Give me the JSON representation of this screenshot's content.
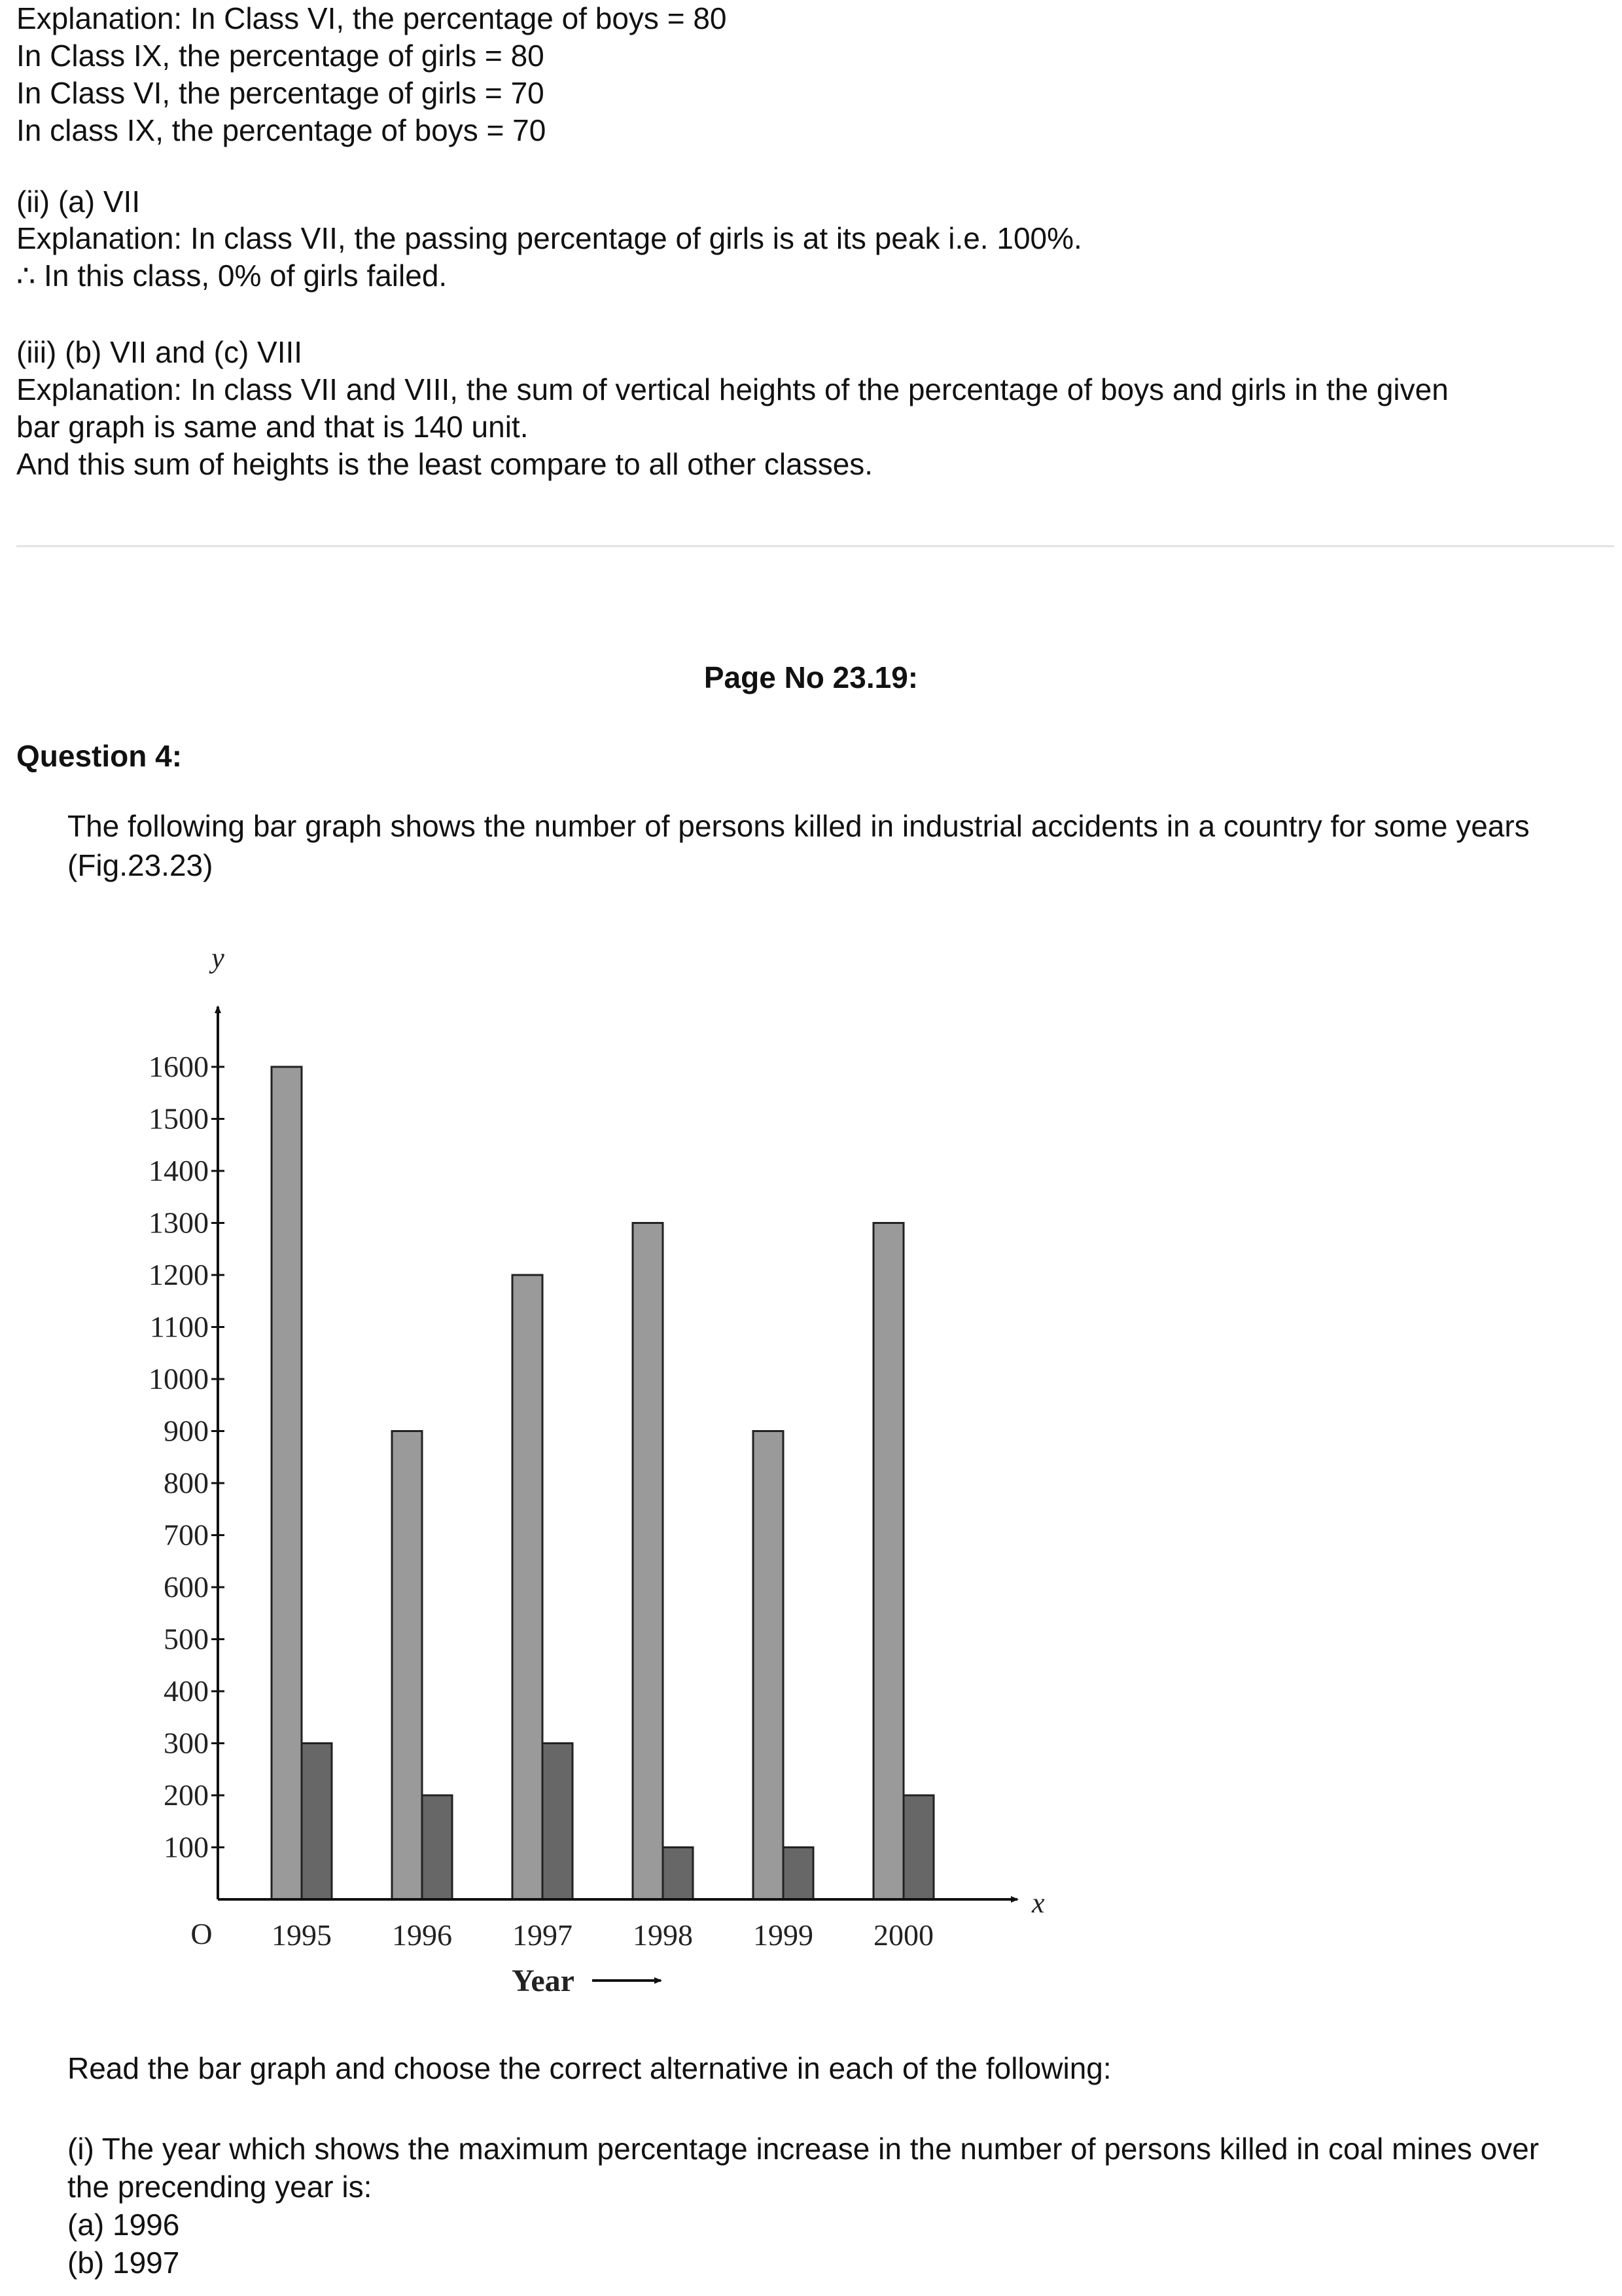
{
  "explanation_block_1": {
    "lines": [
      "Explanation: In Class VI, the percentage of boys = 80",
      "In Class IX, the percentage of girls = 80",
      "In Class VI, the percentage of girls = 70",
      "In class IX, the percentage of boys = 70"
    ]
  },
  "answer_ii": {
    "answer": "(ii) (a) VII",
    "lines": [
      "Explanation: In class VII, the passing percentage of girls is at its peak i.e. 100%.",
      "∴ In this class, 0% of girls failed."
    ]
  },
  "answer_iii": {
    "answer": "(iii) (b) VII and (c) VIII",
    "lines": [
      "Explanation: In class VII and VIII, the sum of vertical heights of the percentage of boys and girls in the given",
      "bar graph is same and that is 140 unit.",
      "And this sum of heights is the least compare to all other classes."
    ]
  },
  "page_no": "Page No 23.19:",
  "question": {
    "heading": "Question 4:",
    "intro_lines": [
      "The following bar graph shows the number of persons killed in industrial accidents in a country for some years",
      "(Fig.23.23)"
    ],
    "instruction": "Read the bar graph and choose the correct alternative in each of the following:",
    "sub_question_lines": [
      "(i) The year which shows the maximum percentage increase in the number of persons killed in coal mines over",
      "the precending year is:"
    ],
    "options": [
      "(a) 1996",
      "(b) 1997"
    ]
  },
  "chart_data": {
    "type": "bar",
    "categories": [
      "1995",
      "1996",
      "1997",
      "1998",
      "1999",
      "2000"
    ],
    "series": [
      {
        "values": [
          1600,
          900,
          1200,
          1300,
          900,
          1300
        ],
        "color": "#9a9a9a"
      },
      {
        "values": [
          300,
          200,
          300,
          100,
          100,
          200
        ],
        "color": "#676767"
      }
    ],
    "title": "",
    "xlabel": "Year",
    "ylabel": "",
    "x_axis_symbol": "x",
    "y_axis_symbol": "y",
    "origin_label": "O",
    "yticks": [
      100,
      200,
      300,
      400,
      500,
      600,
      700,
      800,
      900,
      1000,
      1100,
      1200,
      1300,
      1400,
      1500,
      1600
    ],
    "ylim": [
      0,
      1600
    ],
    "grid": false,
    "legend": "none"
  }
}
